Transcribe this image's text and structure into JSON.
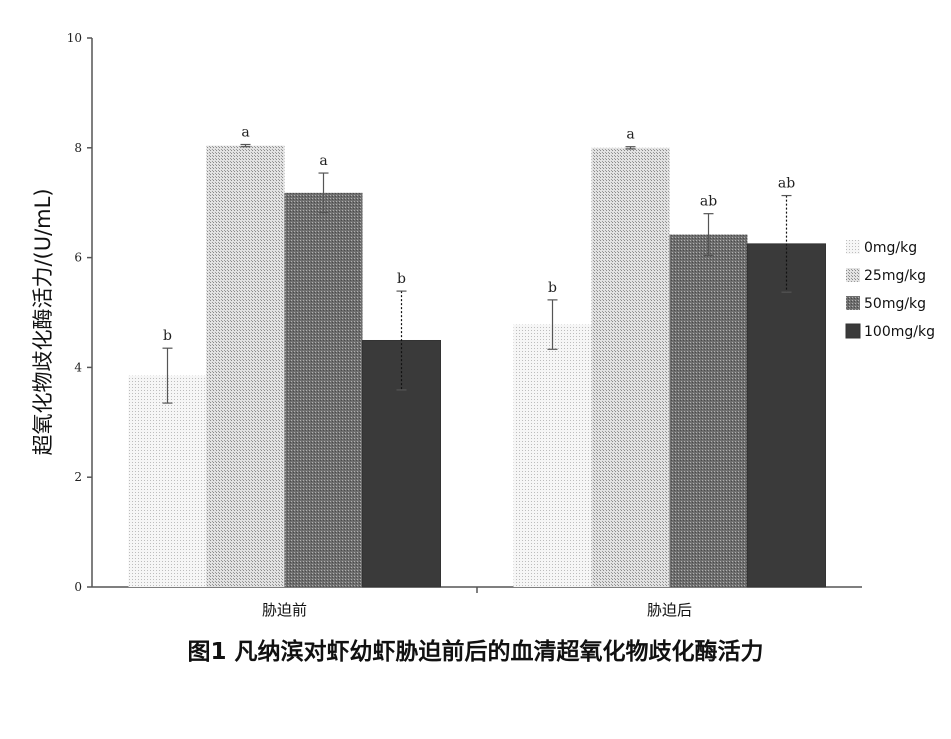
{
  "chart_data": {
    "type": "bar",
    "categories": [
      "胁迫前",
      "胁迫后"
    ],
    "series": [
      {
        "name": "0mg/kg",
        "values": [
          3.85,
          4.78
        ],
        "errors": [
          0.5,
          0.45
        ],
        "letters": [
          "b",
          "b"
        ],
        "color": "#eeeeee"
      },
      {
        "name": "25mg/kg",
        "values": [
          8.04,
          8.0
        ],
        "errors": [
          0.02,
          0.02
        ],
        "letters": [
          "a",
          "a"
        ],
        "color": "#c8c8c8"
      },
      {
        "name": "50mg/kg",
        "values": [
          7.18,
          6.42
        ],
        "errors": [
          0.36,
          0.38
        ],
        "letters": [
          "a",
          "ab"
        ],
        "color": "#7a7a7a"
      },
      {
        "name": "100mg/kg",
        "values": [
          4.49,
          6.25
        ],
        "errors": [
          0.9,
          0.88
        ],
        "letters": [
          "b",
          "ab"
        ],
        "color": "#3c3c3c"
      }
    ],
    "ylabel": "超氧化物歧化酶活力/(U/mL)",
    "xlabel": "",
    "ylim": [
      0,
      10
    ],
    "yticks": [
      0,
      2,
      4,
      6,
      8,
      10
    ],
    "legend_position": "right",
    "grid": false
  },
  "caption": "图1 凡纳滨对虾幼虾胁迫前后的血清超氧化物歧化酶活力"
}
